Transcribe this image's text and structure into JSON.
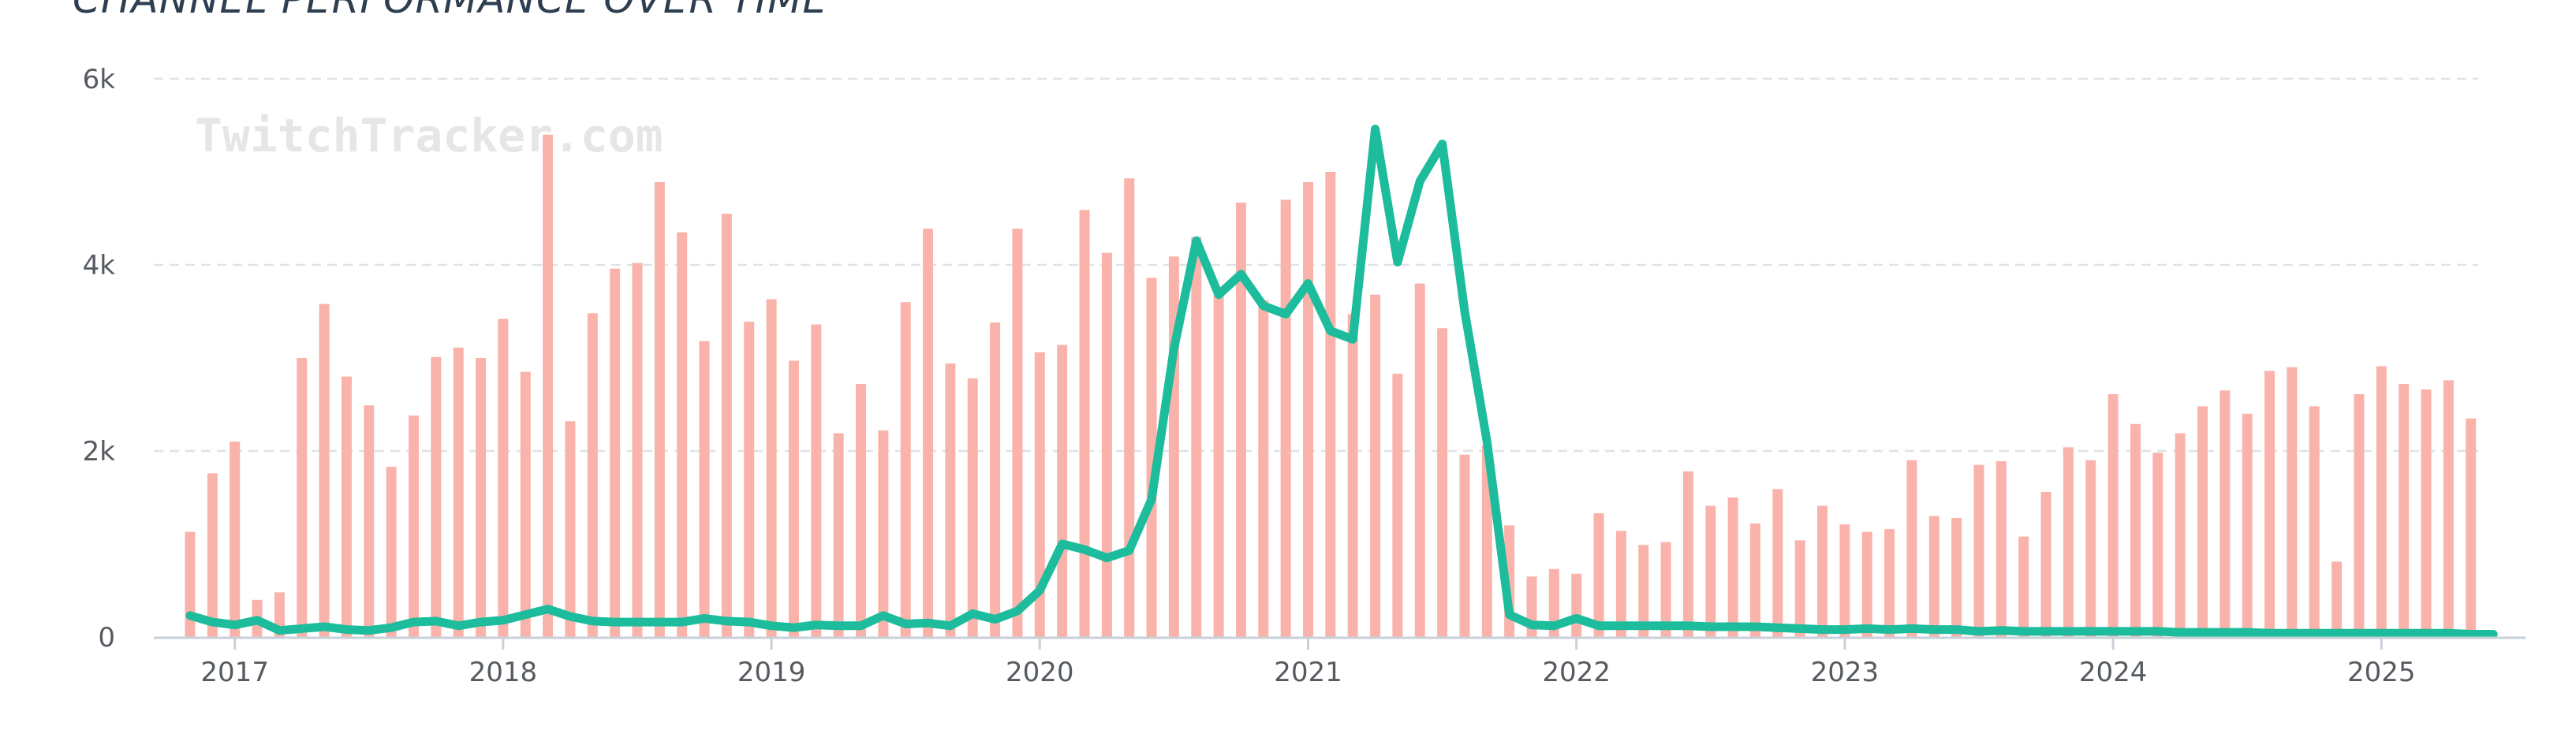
{
  "title": "CHANNEL PERFORMANCE OVER TIME",
  "watermark": "TwitchTracker.com",
  "colors": {
    "bars": "#fab3ab",
    "line": "#1cbc9c",
    "grid": "#dfe3e8",
    "axis": "#c8d0d8",
    "text": "#555a60"
  },
  "chart_data": {
    "type": "bar",
    "title": "CHANNEL PERFORMANCE OVER TIME",
    "ylim": [
      0,
      6000
    ],
    "y_ticks": [
      0,
      2000,
      4000,
      6000
    ],
    "y_tick_labels": [
      "0",
      "2k",
      "4k",
      "6k"
    ],
    "x_tick_labels": [
      "2017",
      "2018",
      "2019",
      "2020",
      "2021",
      "2022",
      "2023",
      "2024",
      "2025"
    ],
    "grid": true,
    "x": [
      "2016-11",
      "2016-12",
      "2017-01",
      "2017-02",
      "2017-03",
      "2017-04",
      "2017-05",
      "2017-06",
      "2017-07",
      "2017-08",
      "2017-09",
      "2017-10",
      "2017-11",
      "2017-12",
      "2018-01",
      "2018-02",
      "2018-03",
      "2018-04",
      "2018-05",
      "2018-06",
      "2018-07",
      "2018-08",
      "2018-09",
      "2018-10",
      "2018-11",
      "2018-12",
      "2019-01",
      "2019-02",
      "2019-03",
      "2019-04",
      "2019-05",
      "2019-06",
      "2019-07",
      "2019-08",
      "2019-09",
      "2019-10",
      "2019-11",
      "2019-12",
      "2020-01",
      "2020-02",
      "2020-03",
      "2020-04",
      "2020-05",
      "2020-06",
      "2020-07",
      "2020-08",
      "2020-09",
      "2020-10",
      "2020-11",
      "2020-12",
      "2021-01",
      "2021-02",
      "2021-03",
      "2021-04",
      "2021-05",
      "2021-06",
      "2021-07",
      "2021-08",
      "2021-09",
      "2021-10",
      "2021-11",
      "2021-12",
      "2022-01",
      "2022-02",
      "2022-03",
      "2022-04",
      "2022-05",
      "2022-06",
      "2022-07",
      "2022-08",
      "2022-09",
      "2022-10",
      "2022-11",
      "2022-12",
      "2023-01",
      "2023-02",
      "2023-03",
      "2023-04",
      "2023-05",
      "2023-06",
      "2023-07",
      "2023-08",
      "2023-09",
      "2023-10",
      "2023-11",
      "2023-12",
      "2024-01",
      "2024-02",
      "2024-03",
      "2024-04",
      "2024-05",
      "2024-06",
      "2024-07",
      "2024-08",
      "2024-09",
      "2024-10",
      "2024-11",
      "2024-12",
      "2025-01",
      "2025-02",
      "2025-03",
      "2025-04",
      "2025-05",
      "2025-06"
    ],
    "series": [
      {
        "type": "bar",
        "values": [
          1130,
          1760,
          2100,
          400,
          480,
          3000,
          3580,
          2800,
          2490,
          1830,
          2380,
          3010,
          3110,
          3000,
          3420,
          2850,
          5400,
          2320,
          3480,
          3960,
          4020,
          4890,
          4350,
          3180,
          4550,
          3390,
          3630,
          2970,
          3360,
          2190,
          2720,
          2220,
          3600,
          4390,
          2940,
          2780,
          3380,
          4390,
          3060,
          3140,
          4590,
          4130,
          4930,
          3860,
          4090,
          4300,
          3680,
          4670,
          3620,
          4700,
          4890,
          5000,
          3470,
          3680,
          2830,
          3800,
          3320,
          1960,
          2060,
          1200,
          650,
          730,
          680,
          1330,
          1140,
          990,
          1020,
          1780,
          1410,
          1500,
          1220,
          1590,
          1040,
          1410,
          1210,
          1130,
          1160,
          1900,
          1300,
          1280,
          1850,
          1890,
          1080,
          1560,
          2040,
          1900,
          2610,
          2290,
          1980,
          2190,
          2480,
          2650,
          2400,
          2860,
          2900,
          2480,
          810,
          2610,
          2910,
          2720,
          2660,
          2760,
          2350,
          null
        ],
        "color": "#fab3ab"
      },
      {
        "type": "line",
        "values": [
          230,
          160,
          130,
          180,
          70,
          90,
          110,
          80,
          70,
          100,
          160,
          170,
          120,
          160,
          180,
          240,
          300,
          220,
          170,
          160,
          160,
          160,
          160,
          200,
          170,
          160,
          120,
          100,
          130,
          120,
          120,
          230,
          140,
          150,
          120,
          250,
          190,
          280,
          500,
          1000,
          940,
          850,
          930,
          1480,
          3100,
          4260,
          3680,
          3900,
          3560,
          3470,
          3800,
          3290,
          3200,
          5460,
          4030,
          4900,
          5300,
          3500,
          2100,
          240,
          130,
          120,
          200,
          120,
          120,
          120,
          120,
          120,
          110,
          110,
          110,
          100,
          90,
          80,
          80,
          90,
          80,
          90,
          80,
          80,
          60,
          70,
          60,
          60,
          60,
          60,
          60,
          60,
          60,
          50,
          50,
          50,
          50,
          40,
          40,
          40,
          40,
          40,
          40,
          40,
          40,
          40,
          30,
          30
        ],
        "color": "#1cbc9c"
      }
    ]
  }
}
